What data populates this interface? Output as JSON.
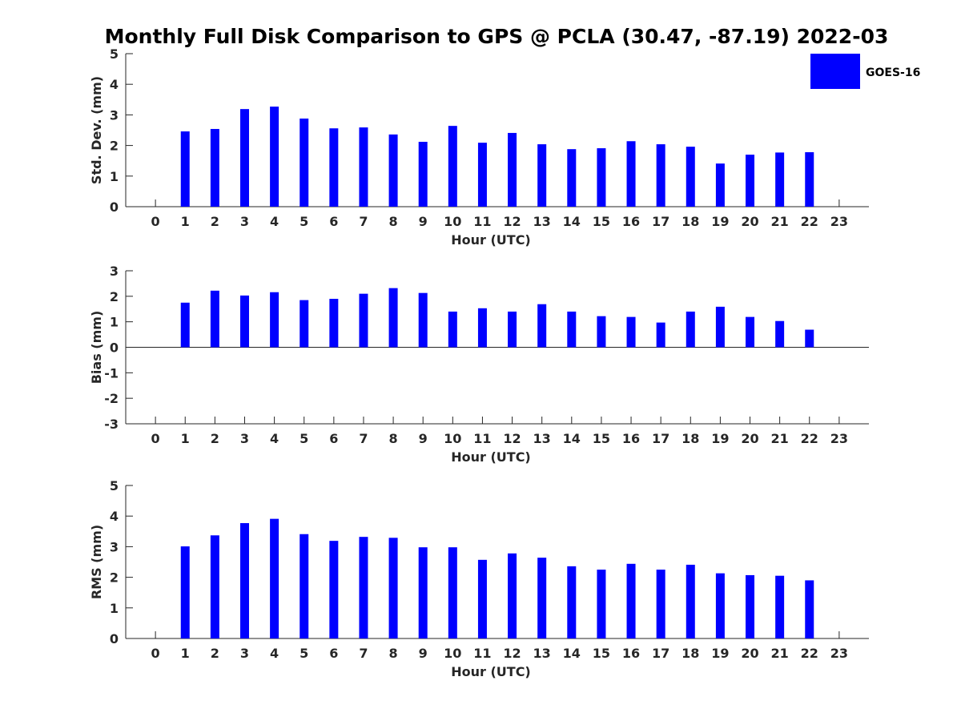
{
  "title": "Monthly Full Disk Comparison to GPS @ PCLA (30.47, -87.19) 2022-03",
  "legend": {
    "label": "GOES-16",
    "color": "#0000ff",
    "placement": "top-right"
  },
  "bar_color": "#0000ff",
  "chart_data": [
    {
      "type": "bar",
      "xlabel": "Hour (UTC)",
      "ylabel": "Std. Dev. (mm)",
      "xlim": [
        -1,
        24
      ],
      "ylim": [
        0,
        5
      ],
      "yticks": [
        0,
        1,
        2,
        3,
        4,
        5
      ],
      "xticks": [
        0,
        1,
        2,
        3,
        4,
        5,
        6,
        7,
        8,
        9,
        10,
        11,
        12,
        13,
        14,
        15,
        16,
        17,
        18,
        19,
        20,
        21,
        22,
        23
      ],
      "series": [
        {
          "name": "GOES-16",
          "x": [
            1,
            2,
            3,
            4,
            5,
            6,
            7,
            8,
            9,
            10,
            11,
            12,
            13,
            14,
            15,
            16,
            17,
            18,
            19,
            20,
            21,
            22
          ],
          "values": [
            2.46,
            2.54,
            3.19,
            3.27,
            2.88,
            2.56,
            2.59,
            2.36,
            2.12,
            2.64,
            2.09,
            2.41,
            2.04,
            1.88,
            1.91,
            2.14,
            2.04,
            1.96,
            1.41,
            1.7,
            1.77,
            1.78
          ]
        }
      ]
    },
    {
      "type": "bar",
      "xlabel": "Hour (UTC)",
      "ylabel": "Bias (mm)",
      "xlim": [
        -1,
        24
      ],
      "ylim": [
        -3,
        3
      ],
      "yticks": [
        -3,
        -2,
        -1,
        0,
        1,
        2,
        3
      ],
      "xticks": [
        0,
        1,
        2,
        3,
        4,
        5,
        6,
        7,
        8,
        9,
        10,
        11,
        12,
        13,
        14,
        15,
        16,
        17,
        18,
        19,
        20,
        21,
        22,
        23
      ],
      "series": [
        {
          "name": "GOES-16",
          "x": [
            1,
            2,
            3,
            4,
            5,
            6,
            7,
            8,
            9,
            10,
            11,
            12,
            13,
            14,
            15,
            16,
            17,
            18,
            19,
            20,
            21,
            22
          ],
          "values": [
            1.75,
            2.22,
            2.03,
            2.16,
            1.85,
            1.9,
            2.1,
            2.32,
            2.13,
            1.4,
            1.53,
            1.4,
            1.69,
            1.4,
            1.22,
            1.19,
            0.97,
            1.4,
            1.59,
            1.19,
            1.03,
            0.69
          ]
        }
      ]
    },
    {
      "type": "bar",
      "xlabel": "Hour (UTC)",
      "ylabel": "RMS (mm)",
      "xlim": [
        -1,
        24
      ],
      "ylim": [
        0,
        5
      ],
      "yticks": [
        0,
        1,
        2,
        3,
        4,
        5
      ],
      "xticks": [
        0,
        1,
        2,
        3,
        4,
        5,
        6,
        7,
        8,
        9,
        10,
        11,
        12,
        13,
        14,
        15,
        16,
        17,
        18,
        19,
        20,
        21,
        22,
        23
      ],
      "series": [
        {
          "name": "GOES-16",
          "x": [
            1,
            2,
            3,
            4,
            5,
            6,
            7,
            8,
            9,
            10,
            11,
            12,
            13,
            14,
            15,
            16,
            17,
            18,
            19,
            20,
            21,
            22
          ],
          "values": [
            3.01,
            3.37,
            3.77,
            3.91,
            3.41,
            3.19,
            3.32,
            3.29,
            2.98,
            2.98,
            2.57,
            2.78,
            2.64,
            2.36,
            2.25,
            2.44,
            2.25,
            2.41,
            2.13,
            2.07,
            2.05,
            1.9
          ]
        }
      ]
    }
  ]
}
